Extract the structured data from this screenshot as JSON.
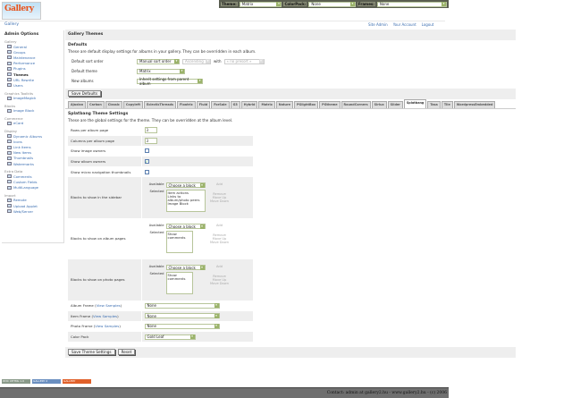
{
  "topbar": {
    "theme_label": "Theme:",
    "theme": "Matrix",
    "colorpack_label": "ColorPack:",
    "colorpack": "None",
    "frames_label": "Frames:",
    "frames": "None"
  },
  "logo": "Gallery",
  "breadcrumb": "Gallery",
  "toplinks": [
    "Site Admin",
    "Your Account",
    "Logout"
  ],
  "sidebar": {
    "title": "Admin Options",
    "sections": [
      {
        "name": "Gallery",
        "items": [
          "General",
          "Groups",
          "Maintenance",
          "Performance",
          "Plugins",
          "Themes",
          "URL Rewrite",
          "Users"
        ]
      },
      {
        "name": "Graphics Toolkits",
        "items": [
          "ImageMagick"
        ]
      },
      {
        "name": "Blocks",
        "items": [
          "Image Block"
        ]
      },
      {
        "name": "Commerce",
        "items": [
          "eCard"
        ]
      },
      {
        "name": "Display",
        "items": [
          "Dynamic Albums",
          "Icons",
          "Link Items",
          "New Items",
          "Thumbnails",
          "Watermarks"
        ]
      },
      {
        "name": "Extra Data",
        "items": [
          "Comments",
          "Custom Fields",
          "MultiLanguage"
        ]
      },
      {
        "name": "Import",
        "items": [
          "Remote",
          "Upload Applet",
          "Web/Server"
        ]
      }
    ],
    "active": "Themes"
  },
  "main": {
    "title": "Gallery Themes",
    "defaults": {
      "heading": "Defaults",
      "desc": "These are default display settings for albums in your gallery. They can be overridden in each album.",
      "sort_label": "Default sort order",
      "sort": "Manual sort order",
      "direction": "Ascending",
      "with_label": "with",
      "presort": "« no presort »",
      "theme_label": "Default theme",
      "theme": "Matrix",
      "new_label": "New albums",
      "new": "Inherit settings from parent album",
      "save": "Save Defaults"
    },
    "tabs": [
      "Ajaxian",
      "Carbon",
      "Classic",
      "Copyleft",
      "EclecticThreads",
      "Floatrix",
      "Fluid",
      "ForSale",
      "G3",
      "Hybrid",
      "Matrix",
      "Nature",
      "PGlightBox",
      "PGtheme",
      "RoundCorners",
      "Siriux",
      "Slider",
      "Splatbang",
      "Tasa",
      "Tile",
      "WordpressEmbedded"
    ],
    "active_tab": "Splatbang",
    "theme_settings": {
      "heading": "Splatbang Theme Settings",
      "desc": "These are the global settings for the theme. They can be overridden at the album level.",
      "rows_label": "Rows per album page",
      "rows": "3",
      "cols_label": "Columns per album page",
      "cols": "3",
      "image_owners_label": "Show image owners",
      "image_owners": false,
      "album_owners_label": "Show album owners",
      "album_owners": true,
      "micro_label": "Show micro navigation thumbnails",
      "micro": false,
      "available": "Available",
      "selected": "Selected",
      "choose": "Choose a block",
      "add": "Add",
      "remove": "Remove",
      "up": "Move Up",
      "down": "Move Down",
      "sidebar_label": "Blocks to show in the sidebar",
      "sidebar_blocks": [
        "Item actions",
        "Links to album/photo peers",
        "Image Block"
      ],
      "album_label": "Blocks to show on album pages",
      "album_blocks": [
        "Show comments"
      ],
      "photo_label": "Blocks to show on photo pages",
      "photo_blocks": [
        "Show comments"
      ],
      "view_samples": "View Samples",
      "album_frame_label": "Album Frame",
      "album_frame": "None",
      "item_frame_label": "Item Frame",
      "item_frame": "None",
      "photo_frame_label": "Photo Frame",
      "photo_frame": "None",
      "colorpack_label": "Color Pack",
      "colorpack": "Gold Leaf",
      "save": "Save Theme Settings",
      "reset": "Reset"
    }
  },
  "badges": [
    "W3C XHTML 1.0",
    "GALLERY 2",
    "GALLERY"
  ],
  "footer": "Contact: admin at gallery2.hu - www.gallery2.hu - (c) 2006"
}
